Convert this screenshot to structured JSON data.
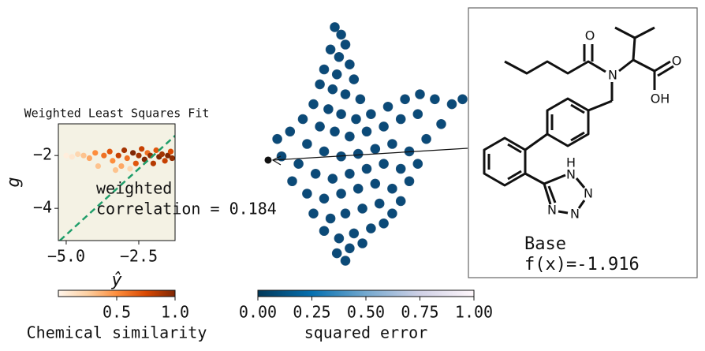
{
  "chart_data": [
    {
      "type": "scatter",
      "title": "Weighted Least Squares Fit",
      "x_label": "ŷ",
      "y_label": "g",
      "xlim": [
        -5.27,
        -1.25
      ],
      "ylim": [
        -5.22,
        -0.8
      ],
      "xticks": [
        {
          "value": -5,
          "label": "−5.0"
        },
        {
          "value": -2.5,
          "label": "−2.5"
        }
      ],
      "yticks": [
        {
          "value": -2,
          "label": "−2"
        },
        {
          "value": -4,
          "label": "−4"
        }
      ],
      "x": [
        -5.0,
        -4.8,
        -4.6,
        -4.4,
        -4.2,
        -4.0,
        -3.9,
        -3.7,
        -3.5,
        -3.4,
        -3.2,
        -3.1,
        -3.0,
        -2.9,
        -2.7,
        -2.6,
        -2.5,
        -2.4,
        -2.3,
        -2.2,
        -2.1,
        -2.0,
        -1.9,
        -1.8,
        -1.7,
        -1.6,
        -1.5,
        -1.4,
        -1.35,
        -3.3,
        -2.8
      ],
      "y": [
        -2.0,
        -2.05,
        -1.95,
        -2.0,
        -2.1,
        -1.9,
        -2.4,
        -2.0,
        -1.85,
        -2.2,
        -2.0,
        -2.4,
        -1.8,
        -2.1,
        -1.9,
        -2.3,
        -2.0,
        -1.75,
        -2.15,
        -1.9,
        -2.0,
        -2.3,
        -1.8,
        -2.05,
        -1.95,
        -2.2,
        -2.0,
        -1.85,
        -2.1,
        -2.55,
        -2.5
      ],
      "c": [
        0.05,
        0.1,
        0.2,
        0.3,
        0.4,
        0.5,
        0.3,
        0.6,
        0.7,
        0.5,
        0.8,
        0.4,
        0.9,
        0.6,
        1.0,
        0.7,
        0.9,
        0.8,
        1.0,
        0.6,
        0.95,
        0.85,
        0.7,
        1.0,
        0.9,
        0.8,
        1.0,
        0.75,
        0.95,
        0.3,
        0.2
      ],
      "annotation": [
        "weighted",
        "correlation = 0.184"
      ],
      "diagonal_color": "#1f9e6a",
      "background": "#f4f2e4"
    },
    {
      "type": "colorbar",
      "label": "Chemical similarity",
      "lim": [
        0,
        1
      ],
      "ticks": [
        0.5,
        {
          "value": 1,
          "label": "1.0"
        }
      ],
      "cmap": [
        "#fff5eb",
        "#fdd0a2",
        "#fd8d3c",
        "#d94801",
        "#7f2704"
      ]
    },
    {
      "type": "scatter",
      "xlim": [
        0,
        100
      ],
      "ylim": [
        0,
        100
      ],
      "color": "#0b4a78",
      "x": [
        35,
        38,
        40,
        33,
        37,
        42,
        30,
        36,
        44,
        28,
        34,
        40,
        47,
        25,
        32,
        38,
        45,
        52,
        60,
        68,
        75,
        82,
        90,
        95,
        20,
        28,
        35,
        42,
        50,
        58,
        66,
        74,
        85,
        78,
        8,
        14,
        22,
        30,
        38,
        46,
        54,
        62,
        70,
        74,
        10,
        18,
        26,
        34,
        42,
        50,
        58,
        66,
        70,
        15,
        22,
        30,
        38,
        46,
        54,
        62,
        66,
        25,
        33,
        40,
        48,
        56,
        62,
        30,
        37,
        44,
        52,
        58,
        36,
        42,
        48,
        40
      ],
      "y": [
        97,
        94,
        90,
        88,
        85,
        82,
        80,
        78,
        76,
        74,
        72,
        70,
        68,
        66,
        64,
        62,
        60,
        62,
        65,
        68,
        70,
        68,
        66,
        68,
        60,
        57,
        55,
        53,
        55,
        57,
        60,
        62,
        58,
        52,
        52,
        55,
        50,
        47,
        45,
        46,
        48,
        50,
        47,
        42,
        45,
        42,
        38,
        36,
        38,
        40,
        42,
        40,
        35,
        35,
        30,
        28,
        30,
        32,
        34,
        32,
        27,
        22,
        20,
        22,
        24,
        26,
        22,
        15,
        12,
        14,
        16,
        18,
        6,
        8,
        10,
        3
      ],
      "highlight": {
        "x": 3.7,
        "y": 43.5,
        "color": "#111111"
      }
    },
    {
      "type": "colorbar",
      "label": "squared error",
      "lim": [
        0,
        1
      ],
      "ticks": [
        {
          "value": 0,
          "label": "0.00"
        },
        0.25,
        {
          "value": 0.5,
          "label": "0.50"
        },
        0.75,
        {
          "value": 1,
          "label": "1.00"
        }
      ],
      "cmap": [
        "#023858",
        "#0570b0",
        "#74a9cf",
        "#d0d1e6",
        "#fff7fb"
      ]
    }
  ],
  "molecule": {
    "labels": [
      "O",
      "N",
      "O",
      "OH",
      "H",
      "N",
      "N",
      "N",
      "N"
    ],
    "name": "Base",
    "value_text": "f(x)=-1.916"
  }
}
